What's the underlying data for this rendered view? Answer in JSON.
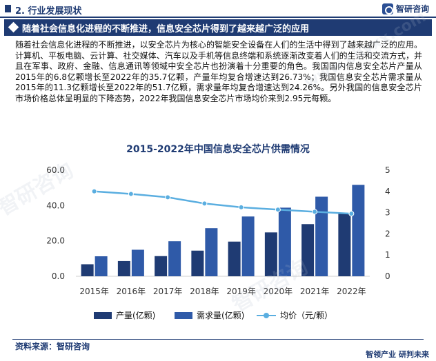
{
  "header": {
    "section_title": "2. 行业发展现状",
    "logo_text": "智研咨询"
  },
  "banner": {
    "text": "随着社会信息化进程的不断推进，信息安全芯片得到了越来越广泛的应用"
  },
  "body_text": "随着社会信息化进程的不断推进，以安全芯片为核心的智能安全设备在人们的生活中得到了越来越广泛的应用。计算机、平板电脑、云计算、社交媒体、汽车以及手机等信息终端和系统逐渐改变着人们的生活和交流方式，并且在军事、政府、金融、信息通讯等领域中安全芯片也扮演着十分重要的角色。我国国内信息安全芯片产量从2015年的6.8亿颗增长至2022年的35.7亿颗，产量年均复合增速达到26.73%；我国信息安全芯片需求量从2015年的11.3亿颗增长至2022年的51.7亿颗，需求量年均复合增速达到24.26%。另外我国的信息安全芯片市场价格总体呈明显的下降态势，2022年我国信息安全芯片市场均价来到2.95元每颗。",
  "watermark": {
    "logo": "智研咨询",
    "url": "www.chyxx.com"
  },
  "chart_data": {
    "type": "bar",
    "title": "2015-2022年中国信息安全芯片供需情况",
    "categories": [
      "2015年",
      "2016年",
      "2017年",
      "2018年",
      "2019年",
      "2020年",
      "2021年",
      "2022年"
    ],
    "series": [
      {
        "name": "产量(亿颗)",
        "type": "bar",
        "axis": "left",
        "color": "#1f3b73",
        "values": [
          6.8,
          8.6,
          11.4,
          14.5,
          19.6,
          24.8,
          29.5,
          35.7
        ]
      },
      {
        "name": "需求量(亿颗)",
        "type": "bar",
        "axis": "left",
        "color": "#2f5aa8",
        "values": [
          11.3,
          15.0,
          19.8,
          27.2,
          33.8,
          38.8,
          45.0,
          51.7
        ]
      },
      {
        "name": "均价（元/颗）",
        "type": "line",
        "axis": "right",
        "color": "#5aaee0",
        "values": [
          4.0,
          3.88,
          3.72,
          3.43,
          3.25,
          3.14,
          3.04,
          2.95
        ]
      }
    ],
    "yleft": {
      "ylim": [
        0,
        60
      ],
      "ticks": [
        "0.0",
        "20.0",
        "40.0",
        "60.0"
      ]
    },
    "yright": {
      "ylim": [
        0,
        5
      ],
      "ticks": [
        "0",
        "1",
        "2",
        "3",
        "4",
        "5"
      ]
    },
    "legend_position": "bottom",
    "grid": false
  },
  "footer": {
    "source": "资料来源：智研咨询",
    "slogan": "智领产业 研判未来"
  }
}
